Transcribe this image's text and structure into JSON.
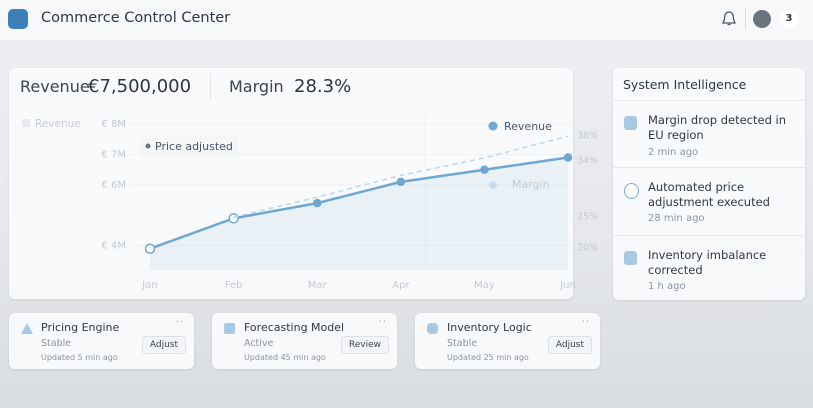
{
  "header": {
    "title": "Commerce Control Center",
    "badge": "3"
  },
  "kpis": {
    "revenue_label": "Revenue",
    "revenue_value": "€7,500,000",
    "margin_label": "Margin",
    "margin_value": "28.3%"
  },
  "chart_data": {
    "type": "line",
    "categories": [
      "Jan",
      "Feb",
      "Mar",
      "Apr",
      "May",
      "Jun"
    ],
    "series": [
      {
        "name": "Revenue",
        "color": "#6ea7d2",
        "values": [
          3900000,
          4900000,
          5400000,
          6100000,
          6500000,
          6900000
        ]
      },
      {
        "name": "Margin",
        "color": "#b9d6ec",
        "axis": "y2",
        "values": [
          null,
          25,
          28.2,
          31.7,
          34.5,
          38
        ]
      }
    ],
    "ylim": [
      3200000,
      8300000
    ],
    "yticks": [
      {
        "value": 4000000,
        "label": "€ 4M"
      },
      {
        "value": 6000000,
        "label": "€ 6M"
      },
      {
        "value": 7000000,
        "label": "€ 7M"
      },
      {
        "value": 8000000,
        "label": "€ 8M"
      }
    ],
    "y2lim": [
      16.5,
      41.4
    ],
    "y2ticks": [
      {
        "value": 20,
        "label": "20%"
      },
      {
        "value": 25,
        "label": "25%"
      },
      {
        "value": 34,
        "label": "34%"
      },
      {
        "value": 38,
        "label": "38%"
      }
    ],
    "annotation": "Price adjusted",
    "grid": true
  },
  "system_intelligence": {
    "title": "System Intelligence",
    "items": [
      {
        "text": "Margin drop detected in EU region",
        "time": "2 min ago"
      },
      {
        "text": "Automated price adjustment executed",
        "time": "28 min ago"
      },
      {
        "text": "Inventory imbalance corrected",
        "time": "1 h ago"
      }
    ]
  },
  "modules": [
    {
      "name": "Pricing Engine",
      "status": "Stable",
      "updated": "Updated 5 min ago",
      "action": "Adjust"
    },
    {
      "name": "Forecasting Model",
      "status": "Active",
      "updated": "Updated 45 min ago",
      "action": "Review"
    },
    {
      "name": "Inventory Logic",
      "status": "Stable",
      "updated": "Updated 25 min ago",
      "action": "Adjust"
    }
  ]
}
